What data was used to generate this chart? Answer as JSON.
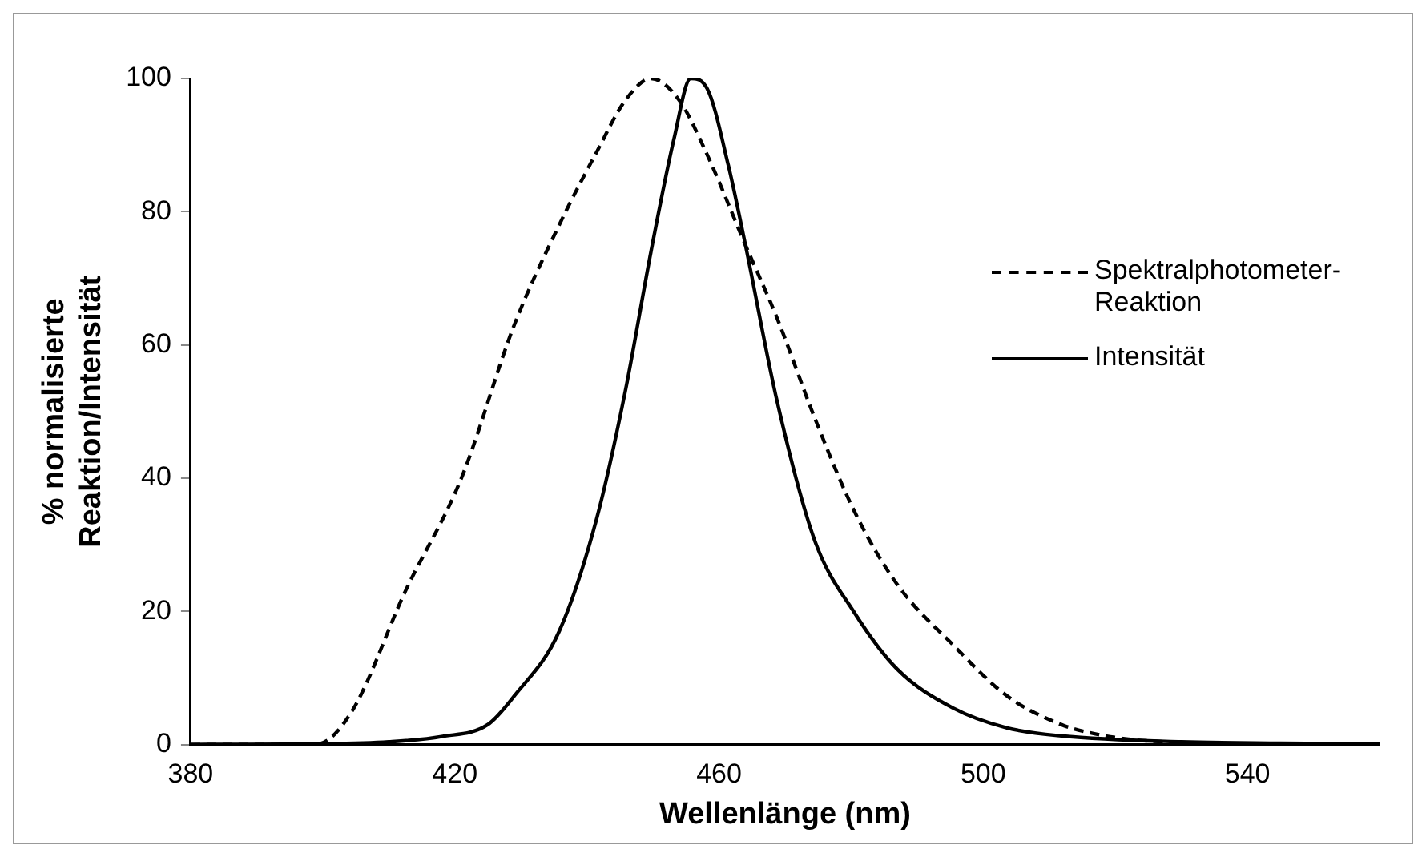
{
  "chart_data": {
    "type": "line",
    "xlabel": "Wellenlänge (nm)",
    "ylabel": "% normalisierte\nReaktion/Intensität",
    "xlim": [
      380,
      560
    ],
    "xticks": [
      380,
      420,
      460,
      500,
      540
    ],
    "ylim": [
      0,
      100
    ],
    "yticks": [
      0,
      20,
      40,
      60,
      80,
      100
    ],
    "grid": false,
    "legend": "top right",
    "marker": "none",
    "series": [
      {
        "name": "Spektralphotometer-Reaktion",
        "color": "#000000",
        "line_style": "dashed",
        "x": [
          380,
          390,
          398.9,
          404.3,
          412.5,
          421,
          429,
          435.8,
          441.5,
          445.8,
          449.7,
          454,
          458,
          464,
          468.8,
          474.5,
          480.5,
          487,
          495.4,
          503.6,
          511.8,
          516,
          522,
          530,
          545,
          560
        ],
        "values": [
          0,
          0,
          0,
          4.8,
          23,
          40,
          63,
          78,
          89,
          96.7,
          100,
          96.7,
          89,
          75,
          64,
          49,
          35,
          24,
          15,
          7.3,
          3,
          1.8,
          0.8,
          0.3,
          0.1,
          0
        ]
      },
      {
        "name": "Intensität",
        "color": "#000000",
        "line_style": "solid",
        "x": [
          380,
          400,
          410,
          418,
          425,
          429,
          435.8,
          441.5,
          445.8,
          449.7,
          453.2,
          455.7,
          458.2,
          461.4,
          464,
          468.8,
          474.5,
          480.5,
          487,
          495.4,
          503.6,
          511.8,
          530,
          545,
          560
        ],
        "values": [
          0,
          0.1,
          0.4,
          1.2,
          3,
          7.3,
          17,
          34,
          53,
          74,
          91,
          100,
          98.5,
          87,
          75,
          51.5,
          30.6,
          19.8,
          11.3,
          5.5,
          2.5,
          1.3,
          0.4,
          0.2,
          0.1
        ]
      }
    ]
  }
}
